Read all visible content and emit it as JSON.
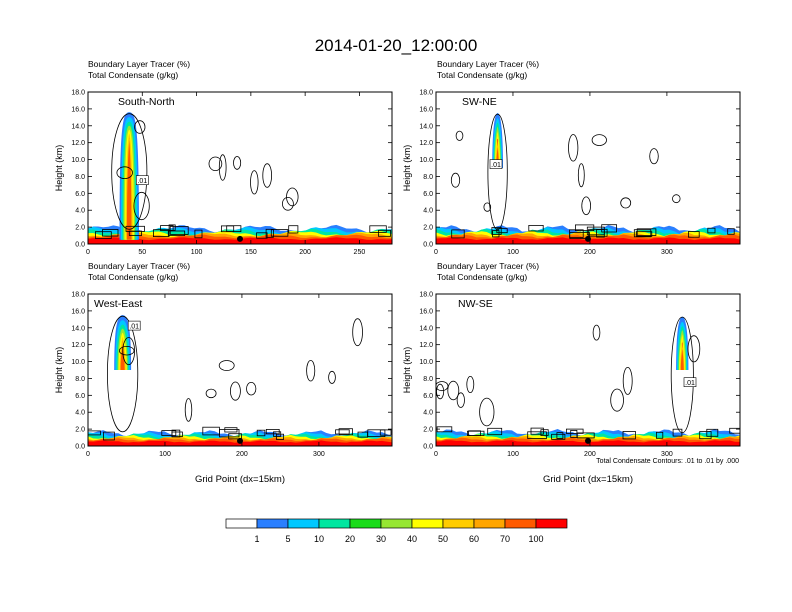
{
  "title": "2014-01-20_12:00:00",
  "shared_labels": {
    "fill_label": "Boundary Layer Tracer",
    "fill_units": "(%)",
    "contour_label": "Total Condensate",
    "contour_units": "(g/kg)"
  },
  "colors": {
    "fill_levels": [
      "#ffffff",
      "#2a7fff",
      "#00c8ff",
      "#00e6a0",
      "#19dc19",
      "#96e632",
      "#ffff00",
      "#ffcc00",
      "#ffa500",
      "#ff5a00",
      "#ff0000"
    ]
  },
  "colorbar": {
    "labels": [
      "1",
      "5",
      "10",
      "20",
      "30",
      "40",
      "50",
      "60",
      "70",
      "100"
    ]
  },
  "footnote": "Total Condensate Contours: .01 to .01 by .000",
  "chart_data": [
    {
      "type": "heatmap",
      "panel_title": "South-North",
      "ylabel": "Height (km)",
      "xlabel": "",
      "xlim": [
        0,
        280
      ],
      "ylim": [
        0,
        18
      ],
      "xticks": [
        0,
        50,
        100,
        150,
        200,
        250
      ],
      "yticks": [
        "0.0",
        "2.0",
        "4.0",
        "6.0",
        "8.0",
        "10.0",
        "12.0",
        "14.0",
        "16.0",
        "18.0"
      ],
      "plume": {
        "x": 38,
        "top_km": 15.6,
        "width": 18
      },
      "boundary_layer_top_km": 1.8,
      "contour_label": ".01",
      "contour_label_pos": {
        "x": 50,
        "y_km": 7.5
      }
    },
    {
      "type": "heatmap",
      "panel_title": "SW-NE",
      "ylabel": "Height (km)",
      "xlabel": "",
      "xlim": [
        0,
        395
      ],
      "ylim": [
        0,
        18
      ],
      "xticks": [
        0,
        100,
        200,
        300
      ],
      "yticks": [
        "0.0",
        "2.0",
        "4.0",
        "6.0",
        "8.0",
        "10.0",
        "12.0",
        "14.0",
        "16.0",
        "18.0"
      ],
      "plume": {
        "x": 80,
        "top_km": 15.5,
        "width": 14
      },
      "boundary_layer_top_km": 1.8,
      "contour_label": ".01",
      "contour_label_pos": {
        "x": 78,
        "y_km": 9.4
      }
    },
    {
      "type": "heatmap",
      "panel_title": "West-East",
      "ylabel": "Height (km)",
      "xlabel": "Grid Point  (dx=15km)",
      "xlim": [
        0,
        395
      ],
      "ylim": [
        0,
        18
      ],
      "xticks": [
        0,
        100,
        200,
        300
      ],
      "yticks": [
        "0.0",
        "2.0",
        "4.0",
        "6.0",
        "8.0",
        "10.0",
        "12.0",
        "14.0",
        "16.0",
        "18.0"
      ],
      "plume": {
        "x": 45,
        "top_km": 15.5,
        "width": 22
      },
      "boundary_layer_top_km": 1.5,
      "contour_label": ".01",
      "contour_label_pos": {
        "x": 60,
        "y_km": 14.2
      }
    },
    {
      "type": "heatmap",
      "panel_title": "NW-SE",
      "ylabel": "Height (km)",
      "xlabel": "Grid Point  (dx=15km)",
      "xlim": [
        0,
        395
      ],
      "ylim": [
        0,
        18
      ],
      "xticks": [
        0,
        100,
        200,
        300
      ],
      "yticks": [
        "0.0",
        "2.0",
        "4.0",
        "6.0",
        "8.0",
        "10.0",
        "12.0",
        "14.0",
        "16.0",
        "18.0"
      ],
      "plume": {
        "x": 320,
        "top_km": 15.3,
        "width": 16
      },
      "boundary_layer_top_km": 1.6,
      "contour_label": ".01",
      "contour_label_pos": {
        "x": 330,
        "y_km": 7.5
      }
    }
  ]
}
